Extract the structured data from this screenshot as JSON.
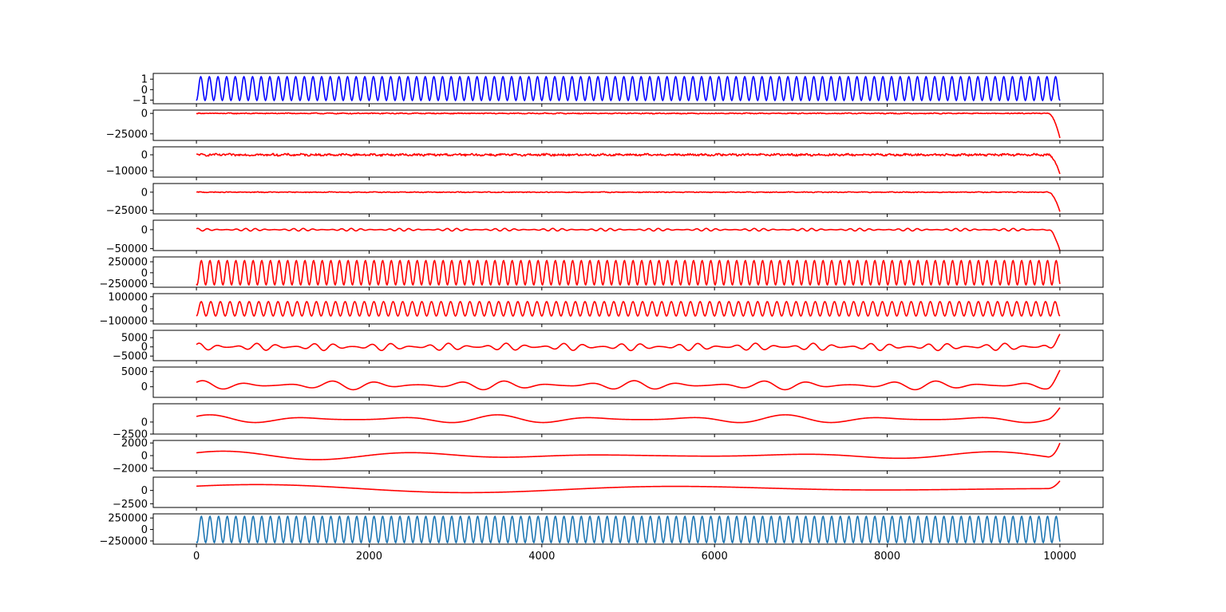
{
  "chart_data": {
    "type": "line",
    "xlim": [
      -500,
      10500
    ],
    "x_ticks": [
      0,
      2000,
      4000,
      6000,
      8000,
      10000
    ],
    "x_tick_labels": [
      "0",
      "2000",
      "4000",
      "6000",
      "8000",
      "10000"
    ],
    "n_samples": 10000,
    "panels": [
      {
        "color": "#0000ff",
        "ylim": [
          -1.35,
          1.55
        ],
        "y_ticks": [
          1,
          0,
          -1
        ],
        "y_tick_labels": [
          "1",
          "0",
          "−1"
        ],
        "waveform": "sine",
        "amplitude": 1.15,
        "offset": 0.1,
        "cycles": 100,
        "phase": -1.57
      },
      {
        "color": "#ff0000",
        "ylim": [
          -33000,
          4000
        ],
        "y_ticks": [
          0,
          -25000
        ],
        "y_tick_labels": [
          "0",
          "−25000"
        ],
        "waveform": "noise",
        "amplitude": 500,
        "offset": 0,
        "end_spike": -30000
      },
      {
        "color": "#ff0000",
        "ylim": [
          -14000,
          5000
        ],
        "y_ticks": [
          0,
          -10000
        ],
        "y_tick_labels": [
          "0",
          "−10000"
        ],
        "waveform": "noise",
        "amplitude": 600,
        "offset": 0,
        "end_spike": -12000
      },
      {
        "color": "#ff0000",
        "ylim": [
          -30000,
          12000
        ],
        "y_ticks": [
          0,
          -25000
        ],
        "y_tick_labels": [
          "0",
          "−25000"
        ],
        "waveform": "noise",
        "amplitude": 500,
        "offset": 0,
        "end_spike": -27000
      },
      {
        "color": "#ff0000",
        "ylim": [
          -55000,
          25000
        ],
        "y_ticks": [
          0,
          -50000
        ],
        "y_tick_labels": [
          "0",
          "−50000"
        ],
        "waveform": "modulated",
        "amplitude": 3500,
        "offset": 0,
        "cycles": 90,
        "mod_cycles": 17,
        "end_spike": -55000
      },
      {
        "color": "#ff0000",
        "ylim": [
          -330000,
          360000
        ],
        "y_ticks": [
          250000,
          0,
          -250000
        ],
        "y_tick_labels": [
          "250000",
          "0",
          "−250000"
        ],
        "waveform": "sine",
        "amplitude": 280000,
        "offset": 0,
        "cycles": 100,
        "phase": -2.0
      },
      {
        "color": "#ff0000",
        "ylim": [
          -125000,
          125000
        ],
        "y_ticks": [
          100000,
          0,
          -100000
        ],
        "y_tick_labels": [
          "100000",
          "0",
          "−100000"
        ],
        "waveform": "sine",
        "amplitude": 60000,
        "offset": 0,
        "cycles": 90,
        "phase": -1.57
      },
      {
        "color": "#ff0000",
        "ylim": [
          -7500,
          9000
        ],
        "y_ticks": [
          5000,
          0,
          -5000
        ],
        "y_tick_labels": [
          "5000",
          "0",
          "−5000"
        ],
        "waveform": "modulated",
        "amplitude": 2000,
        "offset": 0,
        "cycles": 45,
        "mod_cycles": 14,
        "end_spike": 7000
      },
      {
        "color": "#ff0000",
        "ylim": [
          -3500,
          6500
        ],
        "y_ticks": [
          5000,
          0
        ],
        "y_tick_labels": [
          "5000",
          "0"
        ],
        "waveform": "modulated",
        "amplitude": 1500,
        "offset": 500,
        "cycles": 20,
        "mod_cycles": 6,
        "end_spike": 5500
      },
      {
        "color": "#ff0000",
        "ylim": [
          -2500,
          3800
        ],
        "y_ticks": [
          0,
          -2500
        ],
        "y_tick_labels": [
          "0",
          "−2500"
        ],
        "waveform": "modulated",
        "amplitude": 900,
        "offset": 600,
        "cycles": 9,
        "mod_cycles": 3,
        "end_spike": 3000
      },
      {
        "color": "#ff0000",
        "ylim": [
          -2400,
          2400
        ],
        "y_ticks": [
          2000,
          0,
          -2000
        ],
        "y_tick_labels": [
          "2000",
          "0",
          "−2000"
        ],
        "waveform": "modulated",
        "amplitude": 700,
        "offset": 0,
        "cycles": 4.5,
        "mod_cycles": 1,
        "end_spike": 2000
      },
      {
        "color": "#ff0000",
        "ylim": [
          -3200,
          2500
        ],
        "y_ticks": [
          0,
          -2500
        ],
        "y_tick_labels": [
          "0",
          "−2500"
        ],
        "waveform": "modulated",
        "amplitude": 800,
        "offset": 300,
        "cycles": 2,
        "mod_cycles": 0.5,
        "end_spike": 1800
      },
      {
        "color": "#1f77b4",
        "ylim": [
          -320000,
          340000
        ],
        "y_ticks": [
          250000,
          0,
          -250000
        ],
        "y_tick_labels": [
          "250000",
          "0",
          "−250000"
        ],
        "waveform": "sine",
        "amplitude": 290000,
        "offset": 0,
        "cycles": 100,
        "phase": -2.0
      }
    ]
  }
}
